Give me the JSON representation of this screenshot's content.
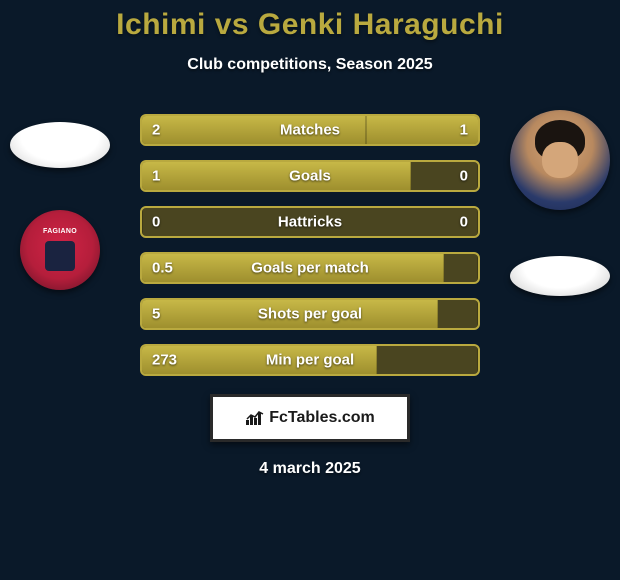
{
  "title": "Ichimi vs Genki Haraguchi",
  "subtitle": "Club competitions, Season 2025",
  "date": "4 march 2025",
  "footer": {
    "label": "FcTables.com"
  },
  "colors": {
    "background": "#0a1929",
    "accent": "#b9a93f",
    "bar_fill": "#c7b847",
    "bar_track": "#4a4520",
    "text": "#ffffff"
  },
  "stats": [
    {
      "label": "Matches",
      "left_val": "2",
      "right_val": "1",
      "left_pct": 66.7,
      "right_pct": 33.3
    },
    {
      "label": "Goals",
      "left_val": "1",
      "right_val": "0",
      "left_pct": 80,
      "right_pct": 0
    },
    {
      "label": "Hattricks",
      "left_val": "0",
      "right_val": "0",
      "left_pct": 0,
      "right_pct": 0
    },
    {
      "label": "Goals per match",
      "left_val": "0.5",
      "right_val": "",
      "left_pct": 90,
      "right_pct": 0
    },
    {
      "label": "Shots per goal",
      "left_val": "5",
      "right_val": "",
      "left_pct": 88,
      "right_pct": 0
    },
    {
      "label": "Min per goal",
      "left_val": "273",
      "right_val": "",
      "left_pct": 70,
      "right_pct": 0
    }
  ]
}
